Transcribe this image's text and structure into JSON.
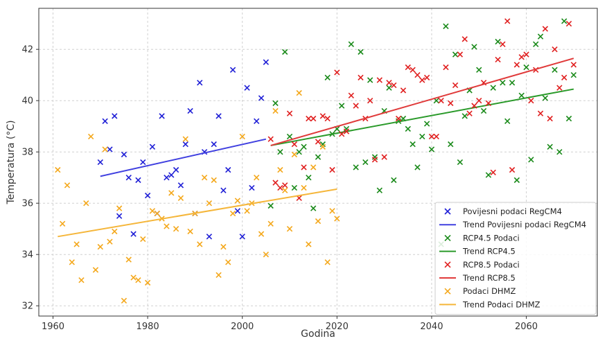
{
  "chart_data": {
    "type": "scatter",
    "xlabel": "Godina",
    "ylabel": "Temperatura (°C)",
    "xlim": [
      1957,
      2075
    ],
    "ylim": [
      31.6,
      43.6
    ],
    "xticks": [
      1960,
      1980,
      2000,
      2020,
      2040,
      2060
    ],
    "yticks": [
      32,
      34,
      36,
      38,
      40,
      42
    ],
    "grid": true,
    "legend_position": "bottom-right",
    "series": [
      {
        "name": "Povijesni podaci RegCM4",
        "kind": "scatter",
        "color": "#1f1fd6",
        "points": [
          [
            1970,
            37.6
          ],
          [
            1971,
            39.2
          ],
          [
            1972,
            38.1
          ],
          [
            1973,
            39.4
          ],
          [
            1974,
            35.5
          ],
          [
            1975,
            37.9
          ],
          [
            1976,
            37.0
          ],
          [
            1977,
            34.8
          ],
          [
            1978,
            36.9
          ],
          [
            1979,
            37.6
          ],
          [
            1980,
            36.3
          ],
          [
            1981,
            38.2
          ],
          [
            1982,
            35.6
          ],
          [
            1983,
            39.4
          ],
          [
            1984,
            37.0
          ],
          [
            1985,
            37.1
          ],
          [
            1986,
            37.3
          ],
          [
            1987,
            36.7
          ],
          [
            1988,
            38.3
          ],
          [
            1989,
            39.6
          ],
          [
            1990,
            35.6
          ],
          [
            1991,
            40.7
          ],
          [
            1992,
            38.0
          ],
          [
            1993,
            34.7
          ],
          [
            1994,
            38.3
          ],
          [
            1995,
            39.4
          ],
          [
            1996,
            36.5
          ],
          [
            1997,
            37.3
          ],
          [
            1998,
            41.2
          ],
          [
            1999,
            35.7
          ],
          [
            2000,
            34.7
          ],
          [
            2001,
            40.5
          ],
          [
            2002,
            36.6
          ],
          [
            2003,
            39.2
          ],
          [
            2004,
            40.1
          ],
          [
            2005,
            41.5
          ]
        ]
      },
      {
        "name": "Trend Povijesni podaci RegCM4",
        "kind": "line",
        "color": "#4040e0",
        "points": [
          [
            1970,
            37.05
          ],
          [
            2005,
            38.5
          ]
        ]
      },
      {
        "name": "RCP4.5 Podaci",
        "kind": "scatter",
        "color": "#1a8a1a",
        "points": [
          [
            2006,
            35.9
          ],
          [
            2007,
            39.9
          ],
          [
            2008,
            38.0
          ],
          [
            2009,
            41.9
          ],
          [
            2010,
            38.6
          ],
          [
            2011,
            36.6
          ],
          [
            2012,
            38.0
          ],
          [
            2013,
            38.2
          ],
          [
            2014,
            37.0
          ],
          [
            2015,
            35.8
          ],
          [
            2016,
            37.8
          ],
          [
            2017,
            38.3
          ],
          [
            2018,
            40.9
          ],
          [
            2019,
            38.7
          ],
          [
            2020,
            38.9
          ],
          [
            2021,
            39.8
          ],
          [
            2022,
            38.9
          ],
          [
            2023,
            42.2
          ],
          [
            2024,
            37.4
          ],
          [
            2025,
            41.9
          ],
          [
            2026,
            37.6
          ],
          [
            2027,
            40.8
          ],
          [
            2028,
            37.8
          ],
          [
            2029,
            36.5
          ],
          [
            2030,
            39.6
          ],
          [
            2031,
            40.5
          ],
          [
            2032,
            36.9
          ],
          [
            2033,
            39.2
          ],
          [
            2034,
            39.3
          ],
          [
            2035,
            38.9
          ],
          [
            2036,
            38.3
          ],
          [
            2037,
            37.4
          ],
          [
            2038,
            38.6
          ],
          [
            2039,
            39.1
          ],
          [
            2040,
            38.1
          ],
          [
            2041,
            40.0
          ],
          [
            2042,
            34.4
          ],
          [
            2043,
            42.9
          ],
          [
            2044,
            38.3
          ],
          [
            2045,
            41.8
          ],
          [
            2046,
            37.6
          ],
          [
            2047,
            39.4
          ],
          [
            2048,
            40.4
          ],
          [
            2049,
            42.1
          ],
          [
            2050,
            41.2
          ],
          [
            2051,
            39.6
          ],
          [
            2052,
            37.1
          ],
          [
            2053,
            40.5
          ],
          [
            2054,
            42.3
          ],
          [
            2055,
            40.7
          ],
          [
            2056,
            39.2
          ],
          [
            2057,
            40.7
          ],
          [
            2058,
            36.9
          ],
          [
            2059,
            40.2
          ],
          [
            2060,
            41.3
          ],
          [
            2061,
            37.7
          ],
          [
            2062,
            42.2
          ],
          [
            2063,
            42.5
          ],
          [
            2064,
            40.1
          ],
          [
            2065,
            38.2
          ],
          [
            2066,
            41.2
          ],
          [
            2067,
            38.0
          ],
          [
            2068,
            43.1
          ],
          [
            2069,
            39.3
          ],
          [
            2070,
            41.0
          ]
        ]
      },
      {
        "name": "Trend RCP4.5",
        "kind": "line",
        "color": "#2a9a2a",
        "points": [
          [
            2006,
            38.25
          ],
          [
            2070,
            40.45
          ]
        ]
      },
      {
        "name": "RCP8.5 Podaci",
        "kind": "scatter",
        "color": "#e02020",
        "points": [
          [
            2006,
            38.5
          ],
          [
            2007,
            36.8
          ],
          [
            2008,
            36.6
          ],
          [
            2009,
            36.7
          ],
          [
            2010,
            39.5
          ],
          [
            2011,
            38.3
          ],
          [
            2012,
            36.2
          ],
          [
            2013,
            37.4
          ],
          [
            2014,
            39.3
          ],
          [
            2015,
            39.3
          ],
          [
            2016,
            38.4
          ],
          [
            2017,
            39.4
          ],
          [
            2018,
            39.3
          ],
          [
            2019,
            37.3
          ],
          [
            2020,
            41.1
          ],
          [
            2021,
            38.7
          ],
          [
            2022,
            38.8
          ],
          [
            2023,
            40.2
          ],
          [
            2024,
            39.8
          ],
          [
            2025,
            40.9
          ],
          [
            2026,
            39.3
          ],
          [
            2027,
            40.0
          ],
          [
            2028,
            37.7
          ],
          [
            2029,
            40.8
          ],
          [
            2030,
            37.8
          ],
          [
            2031,
            40.7
          ],
          [
            2032,
            40.6
          ],
          [
            2033,
            39.3
          ],
          [
            2034,
            40.4
          ],
          [
            2035,
            41.3
          ],
          [
            2036,
            41.2
          ],
          [
            2037,
            41.0
          ],
          [
            2038,
            40.8
          ],
          [
            2039,
            40.9
          ],
          [
            2040,
            38.6
          ],
          [
            2041,
            38.6
          ],
          [
            2042,
            40.0
          ],
          [
            2043,
            41.3
          ],
          [
            2044,
            39.9
          ],
          [
            2045,
            40.6
          ],
          [
            2046,
            41.8
          ],
          [
            2047,
            42.4
          ],
          [
            2048,
            39.5
          ],
          [
            2049,
            39.8
          ],
          [
            2050,
            40.0
          ],
          [
            2051,
            40.7
          ],
          [
            2052,
            39.9
          ],
          [
            2053,
            37.2
          ],
          [
            2054,
            41.6
          ],
          [
            2055,
            42.2
          ],
          [
            2056,
            43.1
          ],
          [
            2057,
            37.3
          ],
          [
            2058,
            41.4
          ],
          [
            2059,
            41.7
          ],
          [
            2060,
            41.8
          ],
          [
            2061,
            40.0
          ],
          [
            2062,
            41.2
          ],
          [
            2063,
            39.5
          ],
          [
            2064,
            42.8
          ],
          [
            2065,
            39.3
          ],
          [
            2066,
            42.0
          ],
          [
            2067,
            40.5
          ],
          [
            2068,
            40.9
          ],
          [
            2069,
            43.0
          ],
          [
            2070,
            41.4
          ]
        ]
      },
      {
        "name": "Trend RCP8.5",
        "kind": "line",
        "color": "#e03a3a",
        "points": [
          [
            2006,
            38.25
          ],
          [
            2070,
            41.65
          ]
        ]
      },
      {
        "name": "Podaci DHMZ",
        "kind": "scatter",
        "color": "#f4a81c",
        "points": [
          [
            1961,
            37.3
          ],
          [
            1962,
            35.2
          ],
          [
            1963,
            36.7
          ],
          [
            1964,
            33.7
          ],
          [
            1965,
            34.4
          ],
          [
            1966,
            33.0
          ],
          [
            1967,
            36.0
          ],
          [
            1968,
            38.6
          ],
          [
            1969,
            33.4
          ],
          [
            1970,
            34.3
          ],
          [
            1971,
            38.1
          ],
          [
            1972,
            34.5
          ],
          [
            1973,
            34.9
          ],
          [
            1974,
            35.8
          ],
          [
            1975,
            32.2
          ],
          [
            1976,
            33.8
          ],
          [
            1977,
            33.1
          ],
          [
            1978,
            33.0
          ],
          [
            1979,
            34.6
          ],
          [
            1980,
            32.9
          ],
          [
            1981,
            35.7
          ],
          [
            1982,
            35.6
          ],
          [
            1983,
            35.4
          ],
          [
            1984,
            35.1
          ],
          [
            1985,
            36.4
          ],
          [
            1986,
            35.0
          ],
          [
            1987,
            36.2
          ],
          [
            1988,
            38.5
          ],
          [
            1989,
            34.9
          ],
          [
            1990,
            35.6
          ],
          [
            1991,
            34.4
          ],
          [
            1992,
            37.0
          ],
          [
            1993,
            36.0
          ],
          [
            1994,
            36.9
          ],
          [
            1995,
            33.2
          ],
          [
            1996,
            34.3
          ],
          [
            1997,
            33.7
          ],
          [
            1998,
            35.6
          ],
          [
            1999,
            36.1
          ],
          [
            2000,
            38.6
          ],
          [
            2001,
            35.7
          ],
          [
            2002,
            36.0
          ],
          [
            2003,
            37.0
          ],
          [
            2004,
            34.8
          ],
          [
            2005,
            34.0
          ],
          [
            2006,
            35.2
          ],
          [
            2007,
            39.6
          ],
          [
            2008,
            37.3
          ],
          [
            2009,
            36.5
          ],
          [
            2010,
            35.0
          ],
          [
            2011,
            37.9
          ],
          [
            2012,
            40.3
          ],
          [
            2013,
            36.6
          ],
          [
            2014,
            34.4
          ],
          [
            2015,
            37.4
          ],
          [
            2016,
            35.3
          ],
          [
            2017,
            38.2
          ],
          [
            2018,
            33.7
          ],
          [
            2019,
            35.7
          ],
          [
            2020,
            35.4
          ]
        ]
      },
      {
        "name": "Trend Podaci DHMZ",
        "kind": "line",
        "color": "#f5b63a",
        "points": [
          [
            1961,
            34.7
          ],
          [
            2020,
            36.55
          ]
        ]
      }
    ]
  }
}
